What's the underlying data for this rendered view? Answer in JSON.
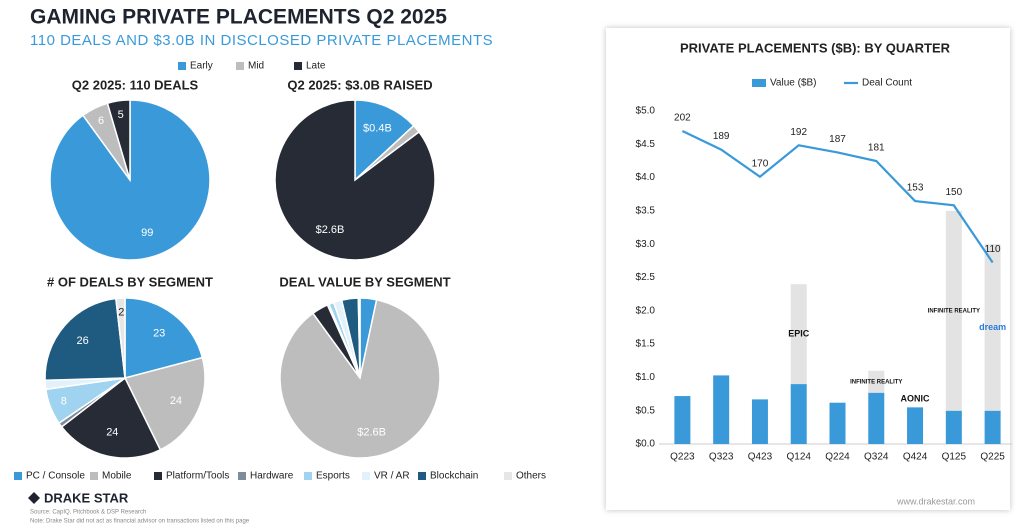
{
  "header": {
    "title": "GAMING PRIVATE PLACEMENTS Q2 2025",
    "subtitle": "110 DEALS AND $3.0B IN DISCLOSED PRIVATE PLACEMENTS"
  },
  "footer": {
    "brand": "DRAKE STAR",
    "source": "Source: CapIQ, Pitchbook & DSP Research",
    "note": "Note: Drake Star did not act as financial advisor on transactions listed on this page",
    "website": "www.drakestar.com"
  },
  "chart_data": [
    {
      "type": "pie",
      "title": "Q2 2025: 110 DEALS",
      "legend": true,
      "categories": [
        "Early",
        "Mid",
        "Late"
      ],
      "values": [
        99,
        6,
        5
      ],
      "colors": [
        "#3a9ad9",
        "#bdbdbd",
        "#262b35"
      ]
    },
    {
      "type": "pie",
      "title": "Q2 2025: $3.0B RAISED",
      "categories": [
        "Early",
        "Mid",
        "Late"
      ],
      "values": [
        0.4,
        0.05,
        2.6
      ],
      "value_labels": [
        "$0.4B",
        null,
        "$2.6B"
      ],
      "colors": [
        "#3a9ad9",
        "#bdbdbd",
        "#262b35"
      ]
    },
    {
      "type": "pie",
      "title": "# OF DEALS BY SEGMENT",
      "legend": true,
      "categories": [
        "PC / Console",
        "Mobile",
        "Platform/Tools",
        "Hardware",
        "Esports",
        "VR / AR",
        "Blockchain",
        "Others"
      ],
      "values": [
        23,
        24,
        24,
        1,
        8,
        2,
        26,
        2
      ],
      "value_labels": [
        "23",
        "24",
        "24",
        null,
        "8",
        null,
        "26",
        "2"
      ],
      "colors": [
        "#3a9ad9",
        "#bdbdbd",
        "#262b35",
        "#7f8c99",
        "#9fd3ef",
        "#e3f1fa",
        "#1f5a80",
        "#e6e6e6"
      ]
    },
    {
      "type": "pie",
      "title": "DEAL VALUE BY SEGMENT",
      "categories": [
        "PC / Console",
        "Mobile",
        "Platform/Tools",
        "Hardware",
        "Esports",
        "VR / AR",
        "Blockchain",
        "Others"
      ],
      "values": [
        0.1,
        2.6,
        0.1,
        0.01,
        0.03,
        0.05,
        0.1,
        0.01
      ],
      "value_labels": [
        null,
        "$2.6B",
        null,
        null,
        null,
        null,
        null,
        null
      ],
      "colors": [
        "#3a9ad9",
        "#bdbdbd",
        "#262b35",
        "#7f8c99",
        "#9fd3ef",
        "#e3f1fa",
        "#1f5a80",
        "#e6e6e6"
      ]
    },
    {
      "type": "bar",
      "title": "PRIVATE PLACEMENTS ($B): BY QUARTER",
      "stacked": true,
      "grid": false,
      "categories": [
        "Q223",
        "Q323",
        "Q423",
        "Q124",
        "Q224",
        "Q324",
        "Q424",
        "Q125",
        "Q225"
      ],
      "series": [
        {
          "name": "Value ($B)",
          "color": "#3a9ad9",
          "values": [
            0.72,
            1.03,
            0.67,
            0.9,
            0.62,
            0.77,
            0.55,
            0.5,
            0.5
          ]
        },
        {
          "color": "#e3e3e3",
          "values": [
            null,
            null,
            null,
            1.5,
            null,
            0.33,
            null,
            3.0,
            2.5
          ]
        },
        {
          "name": "Deal Count",
          "type": "line",
          "axis": "y2",
          "color": "#3a9ad9",
          "values": [
            202,
            189,
            170,
            192,
            187,
            181,
            153,
            150,
            110
          ]
        }
      ],
      "ylim": [
        0,
        5
      ],
      "yticks": [
        {
          "value": 0,
          "label": "$0.0"
        },
        {
          "value": 0.5,
          "label": "$0.5"
        },
        {
          "value": 1,
          "label": "$1.0"
        },
        {
          "value": 1.5,
          "label": "$1.5"
        },
        {
          "value": 2,
          "label": "$2.0"
        },
        {
          "value": 2.5,
          "label": "$2.5"
        },
        {
          "value": 3,
          "label": "$3.0"
        },
        {
          "value": 3.5,
          "label": "$3.5"
        },
        {
          "value": 4,
          "label": "$4.0"
        },
        {
          "value": 4.5,
          "label": "$4.5"
        },
        {
          "value": 5,
          "label": "$5.0"
        }
      ],
      "y2lim": [
        -17,
        216
      ],
      "annotations": [
        {
          "text": "EPIC",
          "category": "Q124"
        },
        {
          "text": "INFINITE REALITY",
          "category": "Q324"
        },
        {
          "text": "AONIC",
          "category": "Q424"
        },
        {
          "text": "INFINITE REALITY",
          "category": "Q125"
        },
        {
          "text": "dream",
          "category": "Q225"
        }
      ]
    }
  ]
}
